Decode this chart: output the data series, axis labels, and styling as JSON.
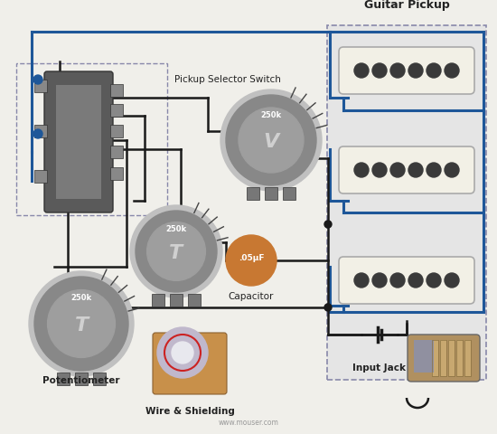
{
  "bg_color": "#f0efea",
  "blue_wire": "#1e5799",
  "black_wire": "#1a1a1a",
  "gray_pot": "#8a8a8a",
  "gray_pot_light": "#b5b5b5",
  "gray_pot_mid": "#9e9e9e",
  "cap_orange": "#c87832",
  "switch_dark": "#5a5a5a",
  "pickup_white": "#f2f0e6",
  "pickup_shadow": "#2a2a2a",
  "lug_color": "#777777",
  "dashed_box_color": "#8888aa",
  "pickup_box_fill": "#e5e5e5",
  "guitar_pickup_label": "Guitar Pickup",
  "pickup_selector_label": "Pickup Selector Switch",
  "potentiometer_label": "Potentiometer",
  "wire_shielding_label": "Wire & Shielding",
  "input_jack_label": "Input Jack",
  "capacitor_label": "Capacitor"
}
